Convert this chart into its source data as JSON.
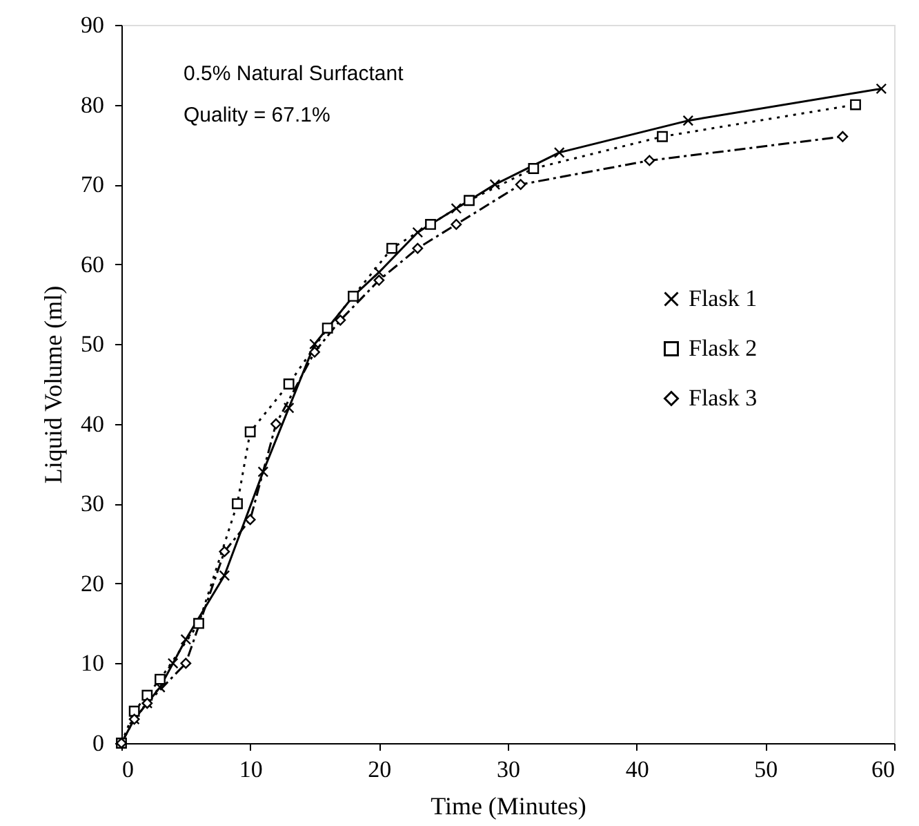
{
  "chart_data": {
    "type": "line",
    "xlabel": "Time (Minutes)",
    "ylabel": "Liquid Volume (ml)",
    "annotations": [
      "0.5% Natural Surfactant",
      "Quality = 67.1%"
    ],
    "xlim": [
      0,
      60
    ],
    "xticks": [
      0,
      10,
      20,
      30,
      40,
      50,
      60
    ],
    "ylim": [
      0,
      90
    ],
    "yticks": [
      0,
      10,
      20,
      30,
      40,
      50,
      60,
      70,
      80,
      90
    ],
    "grid": false,
    "legend": "right",
    "series": [
      {
        "name": "Flask 1",
        "color": "#000000",
        "marker": "cross",
        "line_style": "solid",
        "x": [
          0,
          1,
          2,
          3,
          4,
          5,
          8,
          11,
          13,
          15,
          18,
          20,
          23,
          26,
          29,
          34,
          44,
          59
        ],
        "values": [
          0,
          3,
          5,
          7,
          10,
          13,
          21,
          34,
          42,
          50,
          56,
          59,
          64,
          67,
          70,
          74,
          78,
          82
        ]
      },
      {
        "name": "Flask 2",
        "color": "#000000",
        "marker": "square",
        "line_style": "dotted",
        "x": [
          0,
          1,
          2,
          3,
          6,
          9,
          10,
          13,
          16,
          18,
          21,
          24,
          27,
          32,
          42,
          57
        ],
        "values": [
          0,
          4,
          6,
          8,
          15,
          30,
          39,
          45,
          52,
          56,
          62,
          65,
          68,
          72,
          76,
          80
        ]
      },
      {
        "name": "Flask 3",
        "color": "#000000",
        "marker": "diamond",
        "line_style": "dashed",
        "x": [
          0,
          1,
          2,
          5,
          8,
          10,
          12,
          15,
          17,
          20,
          23,
          26,
          31,
          41,
          56
        ],
        "values": [
          0,
          3,
          5,
          10,
          24,
          28,
          40,
          49,
          53,
          58,
          62,
          65,
          70,
          73,
          76
        ]
      }
    ]
  }
}
